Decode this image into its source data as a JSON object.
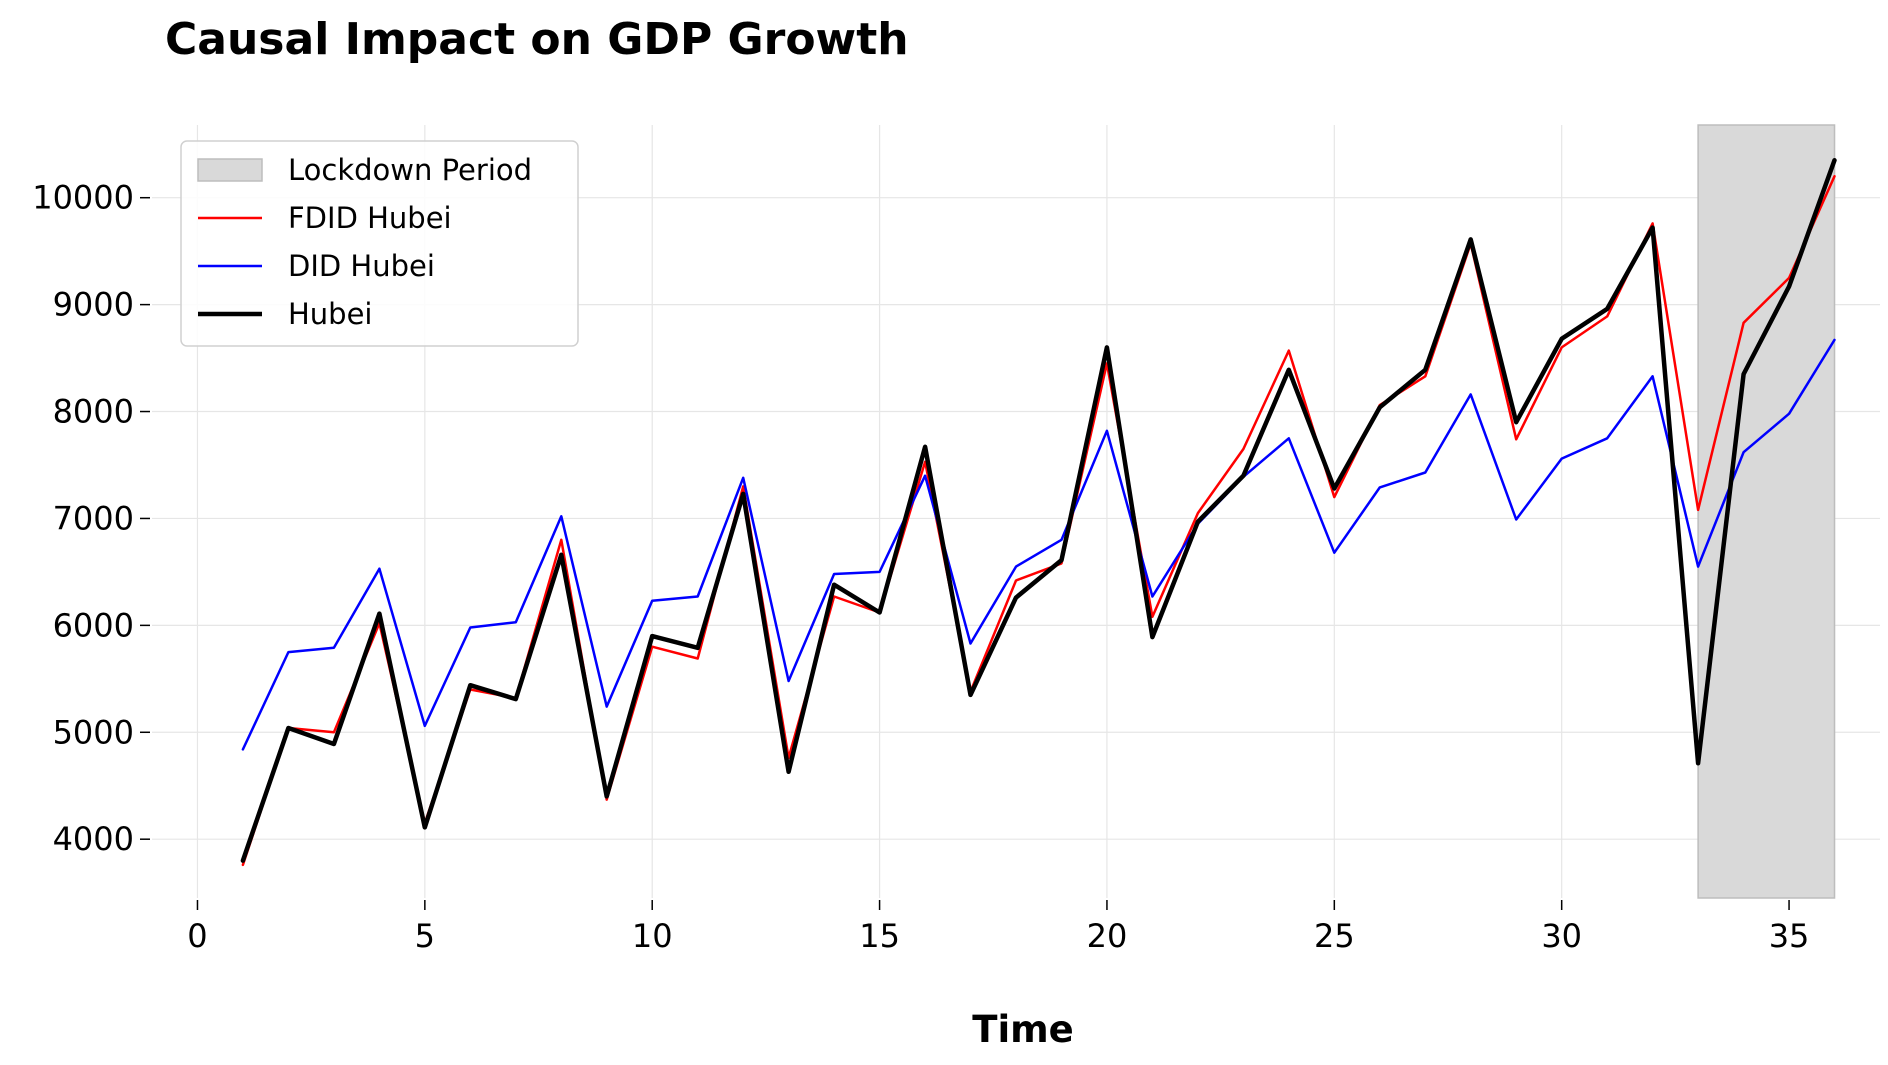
{
  "chart_data": {
    "type": "line",
    "title": "Causal Impact on GDP Growth",
    "xlabel": "Time",
    "ylabel": "",
    "xlim": [
      -1,
      37
    ],
    "ylim": [
      3450,
      10680
    ],
    "xticks": [
      0,
      5,
      10,
      15,
      20,
      25,
      30,
      35
    ],
    "yticks": [
      4000,
      5000,
      6000,
      7000,
      8000,
      9000,
      10000
    ],
    "grid": true,
    "legend_position": "top-left",
    "shaded_region": {
      "label": "Lockdown Period",
      "x_start": 33,
      "x_end": 36,
      "color": "#d9d9d9"
    },
    "x": [
      1,
      2,
      3,
      4,
      5,
      6,
      7,
      8,
      9,
      10,
      11,
      12,
      13,
      14,
      15,
      16,
      17,
      18,
      19,
      20,
      21,
      22,
      23,
      24,
      25,
      26,
      27,
      28,
      29,
      30,
      31,
      32,
      33,
      34,
      35,
      36
    ],
    "series": [
      {
        "name": "FDID Hubei",
        "color": "#ff0000",
        "width": 2.5,
        "values": [
          3760,
          5040,
          5000,
          6020,
          4150,
          5400,
          5320,
          6800,
          4370,
          5800,
          5690,
          7300,
          4760,
          6270,
          6120,
          7530,
          5380,
          6420,
          6580,
          8450,
          6080,
          7050,
          7650,
          8570,
          7200,
          8060,
          8330,
          9570,
          7740,
          8600,
          8890,
          9760,
          7080,
          8830,
          9250,
          10200
        ]
      },
      {
        "name": "DID Hubei",
        "color": "#0000ff",
        "width": 2.5,
        "values": [
          4840,
          5750,
          5790,
          6530,
          5060,
          5980,
          6030,
          7020,
          5240,
          6230,
          6270,
          7380,
          5480,
          6480,
          6500,
          7400,
          5830,
          6550,
          6800,
          7820,
          6270,
          6950,
          7390,
          7750,
          6680,
          7290,
          7430,
          8160,
          6990,
          7560,
          7750,
          8330,
          6550,
          7620,
          7980,
          8670
        ]
      },
      {
        "name": "Hubei",
        "color": "#000000",
        "width": 4.5,
        "values": [
          3800,
          5040,
          4890,
          6110,
          4110,
          5440,
          5310,
          6660,
          4400,
          5900,
          5790,
          7230,
          4630,
          6380,
          6120,
          7670,
          5350,
          6260,
          6610,
          8600,
          5890,
          6970,
          7400,
          8390,
          7280,
          8040,
          8390,
          9610,
          7900,
          8680,
          8960,
          9720,
          4710,
          8350,
          9170,
          10350
        ]
      }
    ]
  }
}
